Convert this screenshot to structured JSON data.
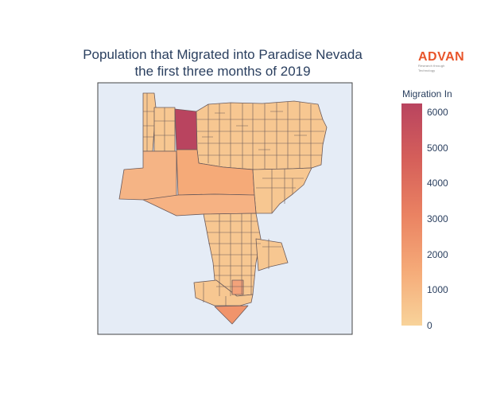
{
  "title": {
    "line1": "Population that Migrated into Paradise Nevada",
    "line2": "the first three months of 2019"
  },
  "logo": {
    "word": "ADVAN",
    "tagline": "Research through Technology"
  },
  "colorbar": {
    "title": "Migration In",
    "ticks": [
      "0",
      "1000",
      "2000",
      "3000",
      "4000",
      "5000",
      "6000"
    ],
    "range": [
      0,
      6250
    ],
    "colorscale": [
      "#f8d39a",
      "#f5aa78",
      "#ea8262",
      "#d55f5a",
      "#b9445f"
    ]
  },
  "colors": {
    "map_background": "#e5ecf6",
    "region_border": "#6b5a5a",
    "title_text": "#2a3f5f",
    "logo": "#e8552b"
  },
  "map": {
    "type": "choropleth",
    "region_values": {
      "top_left_highlight": 6250,
      "west_large": 1500,
      "central_west": 1700,
      "central_band": 1600,
      "south_tip": 2000,
      "south_small": 1400,
      "typical": 600
    }
  }
}
